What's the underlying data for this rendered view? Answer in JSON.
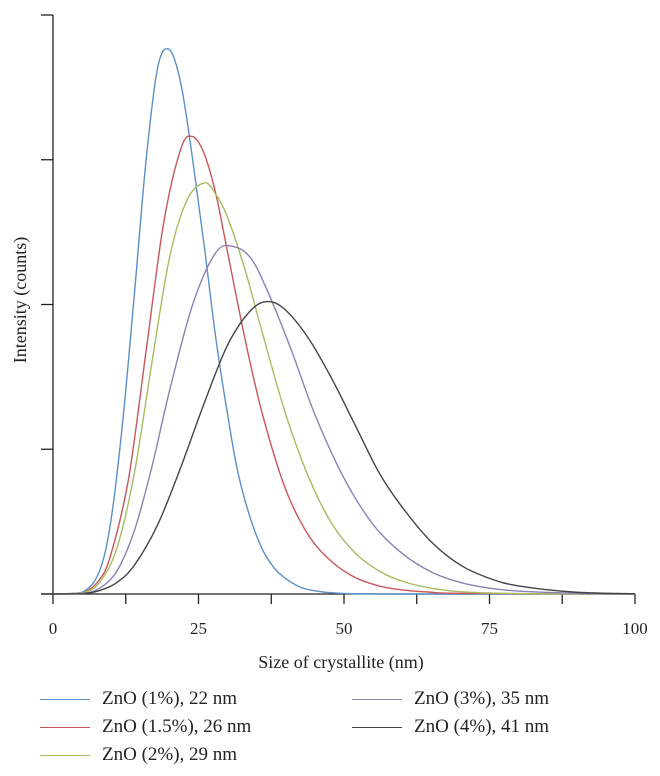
{
  "chart_data": {
    "type": "line",
    "title": "",
    "xlabel": "Size of crystallite (nm)",
    "ylabel": "Intensity (counts)",
    "xlim": [
      0,
      100
    ],
    "ylim": [
      0,
      1
    ],
    "x_ticks": [
      0,
      25,
      50,
      75,
      100
    ],
    "x_tick_labels": [
      "0",
      "25",
      "50",
      "75",
      "100"
    ],
    "x_minor_ticks": [
      12.5,
      37.5,
      62.5,
      87.5
    ],
    "y_ticks": [
      0,
      0.25,
      0.5,
      0.75,
      1.0
    ],
    "y_tick_labels_shown": false,
    "grid": false,
    "legend_position": "bottom",
    "series": [
      {
        "name": "ZnO (1%), 22 nm",
        "color": "#5b8fc7",
        "x": [
          0,
          5,
          8,
          10,
          12,
          14,
          16,
          18,
          20,
          22,
          24,
          26,
          28,
          30,
          32,
          35,
          38,
          42,
          46,
          50,
          55,
          60,
          100
        ],
        "y": [
          0,
          0.003,
          0.04,
          0.13,
          0.3,
          0.52,
          0.75,
          0.91,
          0.94,
          0.88,
          0.75,
          0.6,
          0.44,
          0.31,
          0.2,
          0.1,
          0.045,
          0.014,
          0.004,
          0.001,
          0.0002,
          0,
          0
        ]
      },
      {
        "name": "ZnO (1.5%), 26 nm",
        "color": "#c9555a",
        "x": [
          0,
          5,
          8,
          10,
          13,
          16,
          19,
          22,
          24,
          26,
          28,
          30,
          33,
          36,
          40,
          44,
          48,
          52,
          56,
          60,
          65,
          70,
          100
        ],
        "y": [
          0,
          0.002,
          0.025,
          0.07,
          0.2,
          0.42,
          0.64,
          0.77,
          0.79,
          0.76,
          0.69,
          0.59,
          0.44,
          0.31,
          0.18,
          0.1,
          0.055,
          0.028,
          0.014,
          0.007,
          0.003,
          0.0012,
          0
        ]
      },
      {
        "name": "ZnO (2%), 29 nm",
        "color": "#a9bc5f",
        "x": [
          0,
          5,
          8,
          11,
          14,
          17,
          20,
          23,
          26,
          28,
          30,
          33,
          36,
          40,
          44,
          48,
          52,
          56,
          60,
          65,
          70,
          80,
          100
        ],
        "y": [
          0,
          0.002,
          0.02,
          0.08,
          0.21,
          0.4,
          0.58,
          0.68,
          0.71,
          0.69,
          0.65,
          0.56,
          0.45,
          0.31,
          0.2,
          0.12,
          0.07,
          0.04,
          0.022,
          0.01,
          0.004,
          0.0006,
          0
        ]
      },
      {
        "name": "ZnO (3%), 35 nm",
        "color": "#8e7fb5",
        "x": [
          0,
          5,
          8,
          11,
          14,
          17,
          20,
          24,
          28,
          31,
          34,
          37,
          41,
          45,
          50,
          55,
          60,
          65,
          70,
          75,
          80,
          90,
          100
        ],
        "y": [
          0,
          0.001,
          0.01,
          0.04,
          0.11,
          0.22,
          0.35,
          0.5,
          0.59,
          0.6,
          0.58,
          0.52,
          0.42,
          0.31,
          0.2,
          0.12,
          0.07,
          0.038,
          0.02,
          0.01,
          0.005,
          0.0012,
          0.0002
        ]
      },
      {
        "name": "ZnO (4%), 41 nm",
        "color": "#444444",
        "x": [
          0,
          5,
          8,
          11,
          14,
          18,
          22,
          26,
          30,
          34,
          37,
          40,
          44,
          48,
          52,
          56,
          60,
          65,
          70,
          75,
          80,
          90,
          100
        ],
        "y": [
          0,
          0.0005,
          0.006,
          0.02,
          0.05,
          0.12,
          0.22,
          0.33,
          0.43,
          0.49,
          0.505,
          0.49,
          0.44,
          0.37,
          0.29,
          0.21,
          0.15,
          0.09,
          0.05,
          0.027,
          0.014,
          0.003,
          0.0006
        ]
      }
    ]
  }
}
